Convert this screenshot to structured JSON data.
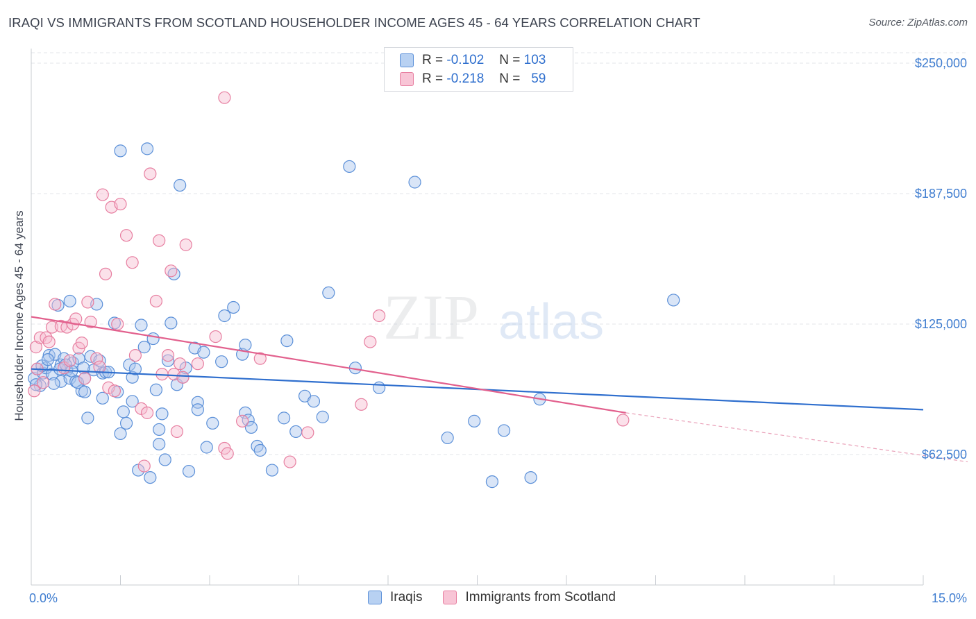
{
  "title": "IRAQI VS IMMIGRANTS FROM SCOTLAND HOUSEHOLDER INCOME AGES 45 - 64 YEARS CORRELATION CHART",
  "source": "Source: ZipAtlas.com",
  "watermark": {
    "zip": "ZIP",
    "atlas": "atlas"
  },
  "legend_top": {
    "rows": [
      {
        "r_label": "R =",
        "r_value": "-0.102",
        "n_label": "N =",
        "n_value": "103",
        "color": "#5a8fd8"
      },
      {
        "r_label": "R =",
        "r_value": "-0.218",
        "n_label": "N =",
        "n_value": "59",
        "color": "#e77ea0"
      }
    ]
  },
  "legend_bottom": [
    {
      "label": "Iraqis",
      "color": "#5a8fd8"
    },
    {
      "label": "Immigrants from Scotland",
      "color": "#e77ea0"
    }
  ],
  "chart_data": {
    "type": "scatter",
    "title": "IRAQI VS IMMIGRANTS FROM SCOTLAND HOUSEHOLDER INCOME AGES 45 - 64 YEARS CORRELATION CHART",
    "xlabel": "",
    "ylabel": "Householder Income Ages 45 - 64 years",
    "xlim": [
      0,
      15
    ],
    "ylim": [
      0,
      257000
    ],
    "x_tick_labels": [
      "0.0%",
      "15.0%"
    ],
    "y_ticks": [
      62500,
      125000,
      187500,
      250000
    ],
    "y_tick_labels": [
      "$62,500",
      "$125,000",
      "$187,500",
      "$250,000"
    ],
    "grid": true,
    "series": [
      {
        "name": "Iraqis",
        "color": "#5a8fd8",
        "trend": {
          "x": [
            0,
            15
          ],
          "y": [
            103500,
            84000
          ]
        },
        "points": [
          [
            0.05,
            99000
          ],
          [
            0.1,
            103500
          ],
          [
            0.15,
            95500
          ],
          [
            0.2,
            101500
          ],
          [
            0.25,
            104000
          ],
          [
            0.3,
            110000
          ],
          [
            0.35,
            101000
          ],
          [
            0.4,
            110500
          ],
          [
            0.45,
            134000
          ],
          [
            0.5,
            105500
          ],
          [
            0.5,
            97500
          ],
          [
            0.55,
            108500
          ],
          [
            0.6,
            103000
          ],
          [
            0.65,
            99000
          ],
          [
            0.65,
            136000
          ],
          [
            0.7,
            106500
          ],
          [
            0.75,
            97500
          ],
          [
            0.8,
            108500
          ],
          [
            0.85,
            93000
          ],
          [
            0.9,
            99000
          ],
          [
            0.9,
            92500
          ],
          [
            0.95,
            80000
          ],
          [
            1.0,
            109500
          ],
          [
            1.05,
            103000
          ],
          [
            1.1,
            134500
          ],
          [
            1.15,
            107500
          ],
          [
            1.2,
            101500
          ],
          [
            1.2,
            89500
          ],
          [
            1.25,
            102000
          ],
          [
            1.3,
            102000
          ],
          [
            1.4,
            125500
          ],
          [
            1.45,
            92500
          ],
          [
            1.5,
            208000
          ],
          [
            1.5,
            72500
          ],
          [
            1.55,
            83000
          ],
          [
            1.6,
            77500
          ],
          [
            1.65,
            105500
          ],
          [
            1.7,
            99500
          ],
          [
            1.7,
            88000
          ],
          [
            1.75,
            103500
          ],
          [
            1.8,
            55000
          ],
          [
            1.85,
            124500
          ],
          [
            1.9,
            114000
          ],
          [
            1.95,
            209000
          ],
          [
            2.0,
            51500
          ],
          [
            2.05,
            118000
          ],
          [
            2.1,
            93500
          ],
          [
            2.15,
            67500
          ],
          [
            2.15,
            74500
          ],
          [
            2.2,
            82000
          ],
          [
            2.25,
            60000
          ],
          [
            2.3,
            107500
          ],
          [
            2.35,
            125500
          ],
          [
            2.4,
            149000
          ],
          [
            2.45,
            96000
          ],
          [
            2.5,
            191500
          ],
          [
            2.55,
            99500
          ],
          [
            2.6,
            104000
          ],
          [
            2.65,
            54500
          ],
          [
            2.75,
            113500
          ],
          [
            2.8,
            87500
          ],
          [
            2.8,
            84000
          ],
          [
            2.9,
            111500
          ],
          [
            2.95,
            66000
          ],
          [
            3.05,
            77500
          ],
          [
            3.2,
            107000
          ],
          [
            3.25,
            129000
          ],
          [
            3.4,
            133000
          ],
          [
            3.55,
            110500
          ],
          [
            3.6,
            115000
          ],
          [
            3.6,
            82500
          ],
          [
            3.65,
            79000
          ],
          [
            3.7,
            75500
          ],
          [
            3.8,
            66500
          ],
          [
            3.85,
            64500
          ],
          [
            4.05,
            55000
          ],
          [
            4.25,
            80000
          ],
          [
            4.3,
            117000
          ],
          [
            4.45,
            73500
          ],
          [
            4.6,
            90500
          ],
          [
            4.75,
            88000
          ],
          [
            4.9,
            80500
          ],
          [
            5.0,
            140000
          ],
          [
            5.35,
            200500
          ],
          [
            5.45,
            104000
          ],
          [
            5.85,
            94500
          ],
          [
            6.45,
            193000
          ],
          [
            7.0,
            70500
          ],
          [
            7.45,
            78500
          ],
          [
            7.75,
            49500
          ],
          [
            7.95,
            74000
          ],
          [
            8.4,
            51500
          ],
          [
            8.55,
            89000
          ],
          [
            10.8,
            136500
          ],
          [
            0.08,
            96000
          ],
          [
            0.18,
            105000
          ],
          [
            0.28,
            108000
          ],
          [
            0.38,
            96500
          ],
          [
            0.48,
            103500
          ],
          [
            0.58,
            105500
          ],
          [
            0.68,
            102500
          ],
          [
            0.78,
            97000
          ],
          [
            0.88,
            104000
          ]
        ]
      },
      {
        "name": "Immigrants from Scotland",
        "color": "#e77ea0",
        "trend": {
          "x": [
            0,
            10.0
          ],
          "y": [
            128500,
            82500
          ],
          "dashed_to": [
            15,
            59000
          ]
        },
        "points": [
          [
            0.05,
            93000
          ],
          [
            0.08,
            114000
          ],
          [
            0.1,
            103500
          ],
          [
            0.15,
            118500
          ],
          [
            0.2,
            97000
          ],
          [
            0.25,
            118500
          ],
          [
            0.3,
            116500
          ],
          [
            0.35,
            123500
          ],
          [
            0.4,
            134500
          ],
          [
            0.5,
            124000
          ],
          [
            0.55,
            104000
          ],
          [
            0.6,
            123500
          ],
          [
            0.65,
            107500
          ],
          [
            0.7,
            125000
          ],
          [
            0.75,
            127500
          ],
          [
            0.8,
            113500
          ],
          [
            0.85,
            116000
          ],
          [
            0.9,
            99000
          ],
          [
            0.95,
            135500
          ],
          [
            1.0,
            126000
          ],
          [
            1.1,
            108500
          ],
          [
            1.15,
            104500
          ],
          [
            1.2,
            187000
          ],
          [
            1.25,
            149000
          ],
          [
            1.3,
            94500
          ],
          [
            1.35,
            181000
          ],
          [
            1.4,
            93000
          ],
          [
            1.45,
            125000
          ],
          [
            1.5,
            182500
          ],
          [
            1.6,
            167500
          ],
          [
            1.7,
            154500
          ],
          [
            1.75,
            110000
          ],
          [
            1.85,
            84500
          ],
          [
            1.9,
            57000
          ],
          [
            1.95,
            82500
          ],
          [
            2.0,
            197000
          ],
          [
            2.1,
            136000
          ],
          [
            2.15,
            165000
          ],
          [
            2.2,
            101000
          ],
          [
            2.3,
            110000
          ],
          [
            2.35,
            150500
          ],
          [
            2.4,
            101000
          ],
          [
            2.45,
            73500
          ],
          [
            2.5,
            106000
          ],
          [
            2.55,
            99500
          ],
          [
            2.6,
            163000
          ],
          [
            2.8,
            106000
          ],
          [
            3.1,
            119000
          ],
          [
            3.25,
            65500
          ],
          [
            3.3,
            63000
          ],
          [
            3.55,
            78500
          ],
          [
            3.85,
            108500
          ],
          [
            4.35,
            59000
          ],
          [
            4.65,
            73000
          ],
          [
            5.55,
            86500
          ],
          [
            5.7,
            116500
          ],
          [
            5.85,
            129000
          ],
          [
            9.95,
            79000
          ],
          [
            3.25,
            233500
          ]
        ]
      }
    ]
  }
}
